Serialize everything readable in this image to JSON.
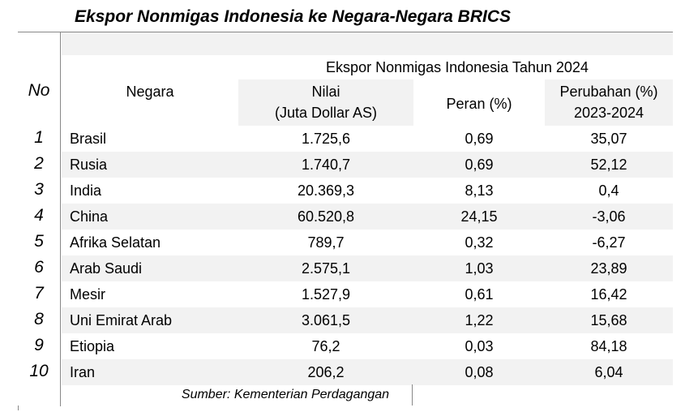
{
  "title": "Ekspor Nonmigas Indonesia ke Negara-Negara BRICS",
  "table": {
    "header": {
      "no": "No",
      "country": "Negara",
      "group": "Ekspor Nonmigas Indonesia Tahun 2024",
      "value": [
        "Nilai",
        "(Juta Dollar AS)"
      ],
      "share": "Peran (%)",
      "change": [
        "Perubahan (%)",
        "2023-2024"
      ]
    },
    "rows": [
      [
        "1",
        "Brasil",
        "1.725,6",
        "0,69",
        "35,07"
      ],
      [
        "2",
        "Rusia",
        "1.740,7",
        "0,69",
        "52,12"
      ],
      [
        "3",
        "India",
        "20.369,3",
        "8,13",
        "0,4"
      ],
      [
        "4",
        "China",
        "60.520,8",
        "24,15",
        "-3,06"
      ],
      [
        "5",
        "Afrika Selatan",
        "789,7",
        "0,32",
        "-6,27"
      ],
      [
        "6",
        "Arab Saudi",
        "2.575,1",
        "1,03",
        "23,89"
      ],
      [
        "7",
        "Mesir",
        "1.527,9",
        "0,61",
        "16,42"
      ],
      [
        "8",
        "Uni Emirat Arab",
        "3.061,5",
        "1,22",
        "15,68"
      ],
      [
        "9",
        "Etiopia",
        "76,2",
        "0,03",
        "84,18"
      ],
      [
        "10",
        "Iran",
        "206,2",
        "0,08",
        "6,04"
      ]
    ]
  },
  "source": "Sumber: Kementerian Perdagangan"
}
